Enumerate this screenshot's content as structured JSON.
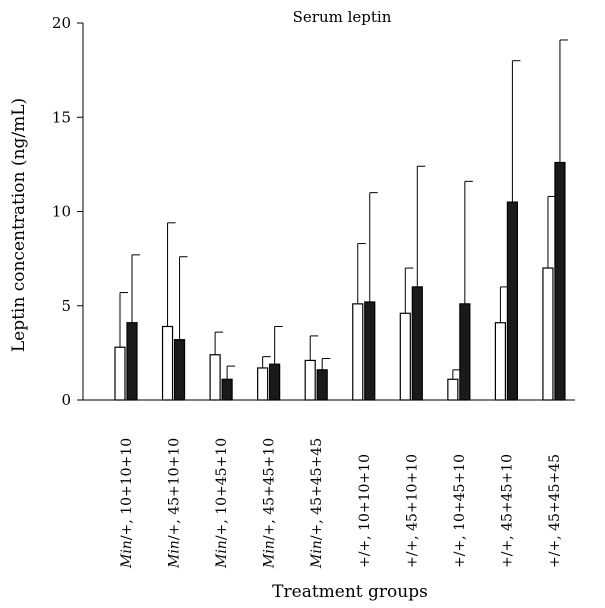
{
  "chart_data": {
    "type": "bar",
    "title": "Serum leptin",
    "xlabel": "Treatment groups",
    "ylabel": "Leptin concentration (ng/mL)",
    "ylim": [
      0,
      20
    ],
    "yticks": [
      0,
      5,
      10,
      15,
      20
    ],
    "grid": false,
    "legend": "none",
    "categories": [
      {
        "prefix": "Min",
        "rest": "/+, 10+10+10"
      },
      {
        "prefix": "Min",
        "rest": "/+, 45+10+10"
      },
      {
        "prefix": "Min",
        "rest": "/+, 10+45+10"
      },
      {
        "prefix": "Min",
        "rest": "/+, 45+45+10"
      },
      {
        "prefix": "Min",
        "rest": "/+, 45+45+45"
      },
      {
        "prefix": "",
        "rest": "+/+, 10+10+10"
      },
      {
        "prefix": "",
        "rest": "+/+, 45+10+10"
      },
      {
        "prefix": "",
        "rest": "+/+, 10+45+10"
      },
      {
        "prefix": "",
        "rest": "+/+, 45+45+10"
      },
      {
        "prefix": "",
        "rest": "+/+, 45+45+45"
      }
    ],
    "series": [
      {
        "fill": "#ffffff",
        "values": [
          2.8,
          3.9,
          2.4,
          1.7,
          2.1,
          5.1,
          4.6,
          1.1,
          4.1,
          7.0
        ],
        "errors": [
          2.9,
          5.5,
          1.2,
          0.6,
          1.3,
          3.2,
          2.4,
          0.5,
          1.9,
          3.8
        ]
      },
      {
        "fill": "#1a1a1a",
        "values": [
          4.1,
          3.2,
          1.1,
          1.9,
          1.6,
          5.2,
          6.0,
          5.1,
          10.5,
          12.6
        ],
        "errors": [
          3.6,
          4.4,
          0.7,
          2.0,
          0.6,
          5.8,
          6.4,
          6.5,
          7.5,
          6.5
        ]
      }
    ]
  }
}
